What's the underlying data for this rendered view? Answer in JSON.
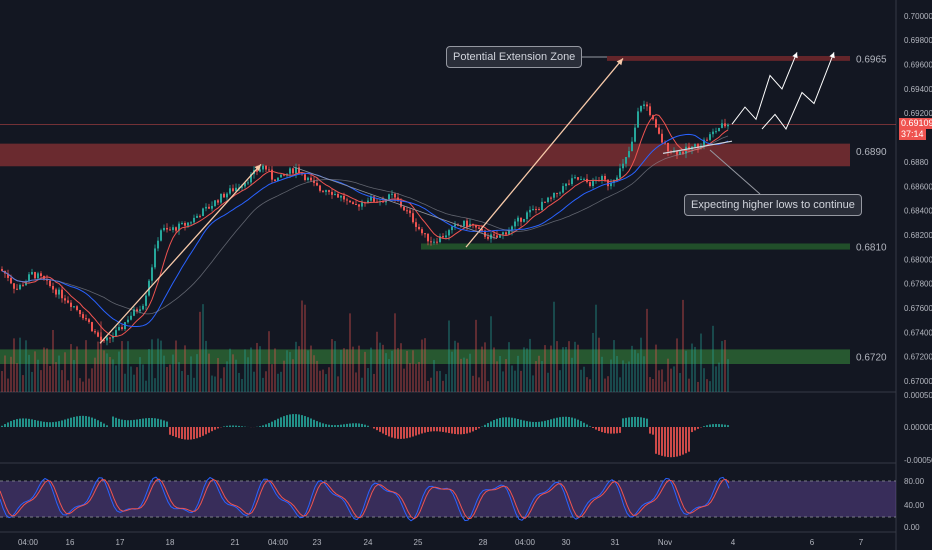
{
  "chart_data": {
    "type": "candlestick",
    "symbol_pair_note": "",
    "price_axis": {
      "ylim": [
        0.6691,
        0.7013
      ],
      "ticks": [
        {
          "value": 0.7,
          "label": "0.70000"
        },
        {
          "value": 0.698,
          "label": "0.69800"
        },
        {
          "value": 0.696,
          "label": "0.69600"
        },
        {
          "value": 0.694,
          "label": "0.69400"
        },
        {
          "value": 0.692,
          "label": "0.69200"
        },
        {
          "value": 0.688,
          "label": "0.6880"
        },
        {
          "value": 0.686,
          "label": "0.68600"
        },
        {
          "value": 0.684,
          "label": "0.68400"
        },
        {
          "value": 0.682,
          "label": "0.68200"
        },
        {
          "value": 0.68,
          "label": "0.68000"
        },
        {
          "value": 0.678,
          "label": "0.67800"
        },
        {
          "value": 0.676,
          "label": "0.67600"
        },
        {
          "value": 0.674,
          "label": "0.67400"
        },
        {
          "value": 0.672,
          "label": "0.67200"
        },
        {
          "value": 0.67,
          "label": "0.67000"
        }
      ]
    },
    "zones": [
      {
        "name": "resistance",
        "low": 0.6963,
        "high": 0.6967,
        "label": "0.6965",
        "color": "#a83232"
      },
      {
        "name": "support-mid",
        "low": 0.6883,
        "high": 0.6895,
        "label": "0.6890",
        "color": "#b23a3a"
      },
      {
        "name": "support-low",
        "low": 0.6808,
        "high": 0.6813,
        "label": "0.6810",
        "color": "#2e7d32"
      },
      {
        "name": "demand",
        "low": 0.6714,
        "high": 0.6726,
        "label": "0.6720",
        "color": "#388e3c"
      }
    ],
    "current_price": {
      "label": "0.69109",
      "countdown": "37:14",
      "value": 0.69109
    },
    "time_axis": [
      "04:00",
      "16",
      "17",
      "18",
      "21",
      "04:00",
      "23",
      "24",
      "25",
      "28",
      "04:00",
      "30",
      "31",
      "Nov",
      "4",
      "6",
      "7"
    ],
    "price_path": [
      [
        0,
        0.6792
      ],
      [
        8,
        0.6786
      ],
      [
        16,
        0.6775
      ],
      [
        24,
        0.6781
      ],
      [
        32,
        0.6788
      ],
      [
        40,
        0.6785
      ],
      [
        48,
        0.6779
      ],
      [
        56,
        0.6774
      ],
      [
        64,
        0.6769
      ],
      [
        72,
        0.6763
      ],
      [
        80,
        0.6757
      ],
      [
        88,
        0.6749
      ],
      [
        96,
        0.6738
      ],
      [
        104,
        0.6731
      ],
      [
        112,
        0.6737
      ],
      [
        120,
        0.6742
      ],
      [
        128,
        0.6752
      ],
      [
        136,
        0.6758
      ],
      [
        144,
        0.6765
      ],
      [
        152,
        0.6795
      ],
      [
        160,
        0.6825
      ],
      [
        168,
        0.6823
      ],
      [
        176,
        0.6826
      ],
      [
        184,
        0.6828
      ],
      [
        192,
        0.6832
      ],
      [
        200,
        0.6838
      ],
      [
        208,
        0.6842
      ],
      [
        216,
        0.6848
      ],
      [
        224,
        0.6853
      ],
      [
        232,
        0.6857
      ],
      [
        240,
        0.6861
      ],
      [
        248,
        0.6866
      ],
      [
        256,
        0.6872
      ],
      [
        264,
        0.6877
      ],
      [
        272,
        0.6867
      ],
      [
        280,
        0.6866
      ],
      [
        288,
        0.6871
      ],
      [
        296,
        0.6875
      ],
      [
        304,
        0.6869
      ],
      [
        312,
        0.6862
      ],
      [
        320,
        0.6857
      ],
      [
        328,
        0.6858
      ],
      [
        336,
        0.6853
      ],
      [
        344,
        0.685
      ],
      [
        352,
        0.6842
      ],
      [
        360,
        0.6846
      ],
      [
        368,
        0.685
      ],
      [
        376,
        0.6848
      ],
      [
        384,
        0.6849
      ],
      [
        392,
        0.6852
      ],
      [
        400,
        0.6845
      ],
      [
        408,
        0.6838
      ],
      [
        416,
        0.6829
      ],
      [
        424,
        0.6819
      ],
      [
        432,
        0.6815
      ],
      [
        440,
        0.6818
      ],
      [
        448,
        0.6822
      ],
      [
        456,
        0.6827
      ],
      [
        464,
        0.6829
      ],
      [
        472,
        0.6828
      ],
      [
        480,
        0.6822
      ],
      [
        488,
        0.6819
      ],
      [
        496,
        0.6817
      ],
      [
        504,
        0.6822
      ],
      [
        512,
        0.6826
      ],
      [
        520,
        0.6833
      ],
      [
        528,
        0.6838
      ],
      [
        536,
        0.6841
      ],
      [
        544,
        0.6846
      ],
      [
        552,
        0.685
      ],
      [
        560,
        0.6857
      ],
      [
        568,
        0.6862
      ],
      [
        576,
        0.6866
      ],
      [
        584,
        0.6864
      ],
      [
        592,
        0.6862
      ],
      [
        600,
        0.6867
      ],
      [
        608,
        0.6862
      ],
      [
        616,
        0.6869
      ],
      [
        624,
        0.6878
      ],
      [
        632,
        0.6895
      ],
      [
        640,
        0.6928
      ],
      [
        648,
        0.6925
      ],
      [
        656,
        0.6906
      ],
      [
        664,
        0.6894
      ],
      [
        672,
        0.6889
      ],
      [
        680,
        0.6888
      ],
      [
        688,
        0.689
      ],
      [
        696,
        0.6893
      ],
      [
        704,
        0.6897
      ],
      [
        712,
        0.6903
      ],
      [
        720,
        0.6909
      ],
      [
        728,
        0.6911
      ]
    ],
    "projection": [
      [
        732,
        0.6911
      ],
      [
        745,
        0.6925
      ],
      [
        756,
        0.6915
      ],
      [
        770,
        0.6951
      ],
      [
        782,
        0.694
      ],
      [
        797,
        0.697
      ]
    ],
    "projection2": [
      [
        762,
        0.6907
      ],
      [
        775,
        0.6919
      ],
      [
        786,
        0.6907
      ],
      [
        802,
        0.6937
      ],
      [
        814,
        0.6928
      ],
      [
        834,
        0.697
      ]
    ],
    "annotations": [
      {
        "text": "Potential Extension Zone"
      },
      {
        "text": "Expecting higher lows to continue"
      }
    ],
    "macd_axis": {
      "labels": [
        "0.00050",
        "0.00000",
        "-0.00050"
      ]
    },
    "stoch_axis": {
      "labels": [
        "80.00",
        "40.00",
        "0.00"
      ]
    }
  },
  "colors": {
    "background": "#131722",
    "grid": "#1e222d",
    "bull": "#26a69a",
    "bear": "#ef5350",
    "ma_fast": "#ef5350",
    "ma_slow": "#2962ff",
    "axis_text": "#b2b5be",
    "stoch_band": "#7e57c2",
    "price_tag": "#ef5350"
  }
}
